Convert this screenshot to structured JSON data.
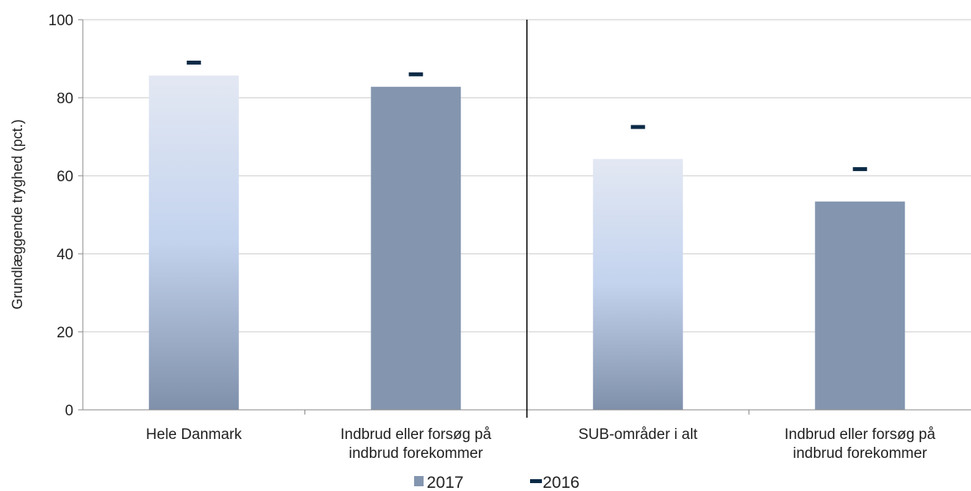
{
  "chart_data": {
    "type": "bar",
    "title": "",
    "ylabel": "Grundlæggende tryghed (pct.)",
    "xlabel": "",
    "ylim": [
      0,
      100
    ],
    "yticks": [
      0,
      20,
      40,
      60,
      80,
      100
    ],
    "grid": "horizontal",
    "legend_position": "bottom",
    "categories": [
      [
        "Hele Danmark"
      ],
      [
        "Indbrud eller forsøg på",
        "indbrud forekommer"
      ],
      [
        "SUB-områder i alt"
      ],
      [
        "Indbrud eller forsøg på",
        "indbrud forekommer"
      ]
    ],
    "bar_styles": [
      "gradient",
      "solid",
      "gradient",
      "solid"
    ],
    "group_divider_after_index": 1,
    "series": [
      {
        "name": "2017",
        "kind": "bar",
        "values": [
          85.7,
          82.8,
          64.3,
          53.4
        ]
      },
      {
        "name": "2016",
        "kind": "marker",
        "values": [
          89,
          86,
          72.5,
          61.7
        ]
      }
    ],
    "colors": {
      "bar_solid": "#8496af",
      "gradient_top": "#e3e8f3",
      "gradient_mid": "#c3d3ee",
      "gradient_bottom": "#7f90ab",
      "marker": "#0d2b46",
      "grid": "#c8c8c8",
      "axis": "#8a8a8a",
      "divider": "#000000"
    }
  }
}
